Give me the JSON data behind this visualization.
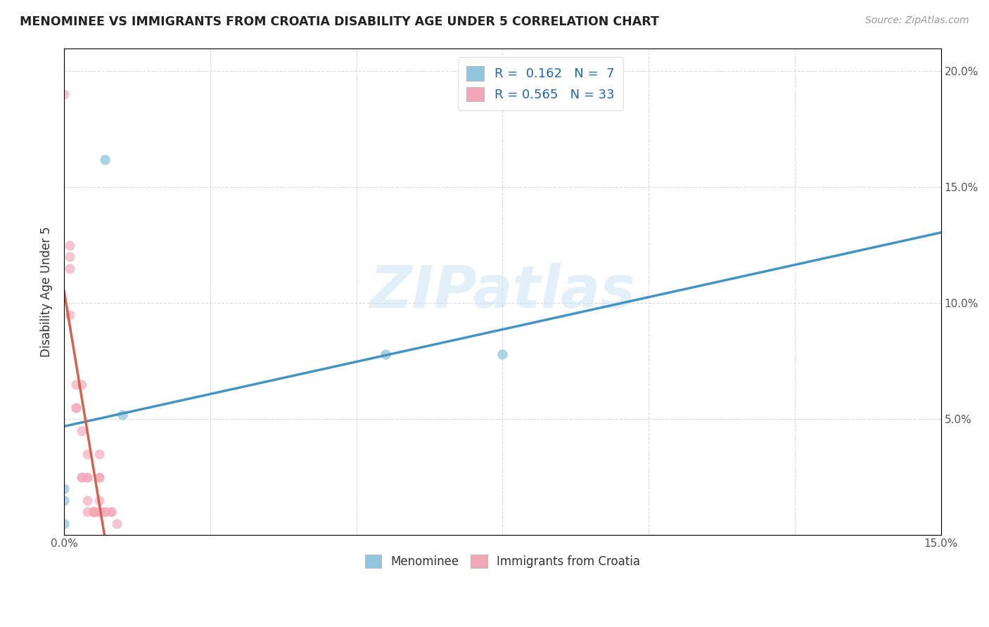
{
  "title": "MENOMINEE VS IMMIGRANTS FROM CROATIA DISABILITY AGE UNDER 5 CORRELATION CHART",
  "source": "Source: ZipAtlas.com",
  "ylabel": "Disability Age Under 5",
  "xlabel": "",
  "xlim": [
    0.0,
    0.15
  ],
  "ylim": [
    0.0,
    0.21
  ],
  "xticks": [
    0.0,
    0.025,
    0.05,
    0.075,
    0.1,
    0.125,
    0.15
  ],
  "yticks": [
    0.0,
    0.05,
    0.1,
    0.15,
    0.2
  ],
  "watermark": "ZIPatlas",
  "legend_r1": "R =  0.162",
  "legend_n1": "N =  7",
  "legend_r2": "R = 0.565",
  "legend_n2": "N = 33",
  "menominee_color": "#92c5de",
  "croatia_color": "#f4a7b9",
  "trendline_menominee_color": "#4393c3",
  "trendline_croatia_color": "#d6604d",
  "menominee_scatter": [
    [
      0.0,
      0.015
    ],
    [
      0.0,
      0.02
    ],
    [
      0.0,
      0.005
    ],
    [
      0.007,
      0.162
    ],
    [
      0.01,
      0.052
    ],
    [
      0.055,
      0.078
    ],
    [
      0.075,
      0.078
    ]
  ],
  "croatia_scatter": [
    [
      0.0,
      0.19
    ],
    [
      0.001,
      0.125
    ],
    [
      0.001,
      0.095
    ],
    [
      0.001,
      0.115
    ],
    [
      0.001,
      0.12
    ],
    [
      0.002,
      0.065
    ],
    [
      0.002,
      0.055
    ],
    [
      0.002,
      0.055
    ],
    [
      0.003,
      0.065
    ],
    [
      0.003,
      0.045
    ],
    [
      0.003,
      0.025
    ],
    [
      0.003,
      0.025
    ],
    [
      0.004,
      0.035
    ],
    [
      0.004,
      0.025
    ],
    [
      0.004,
      0.025
    ],
    [
      0.004,
      0.015
    ],
    [
      0.004,
      0.01
    ],
    [
      0.005,
      0.01
    ],
    [
      0.005,
      0.01
    ],
    [
      0.005,
      0.01
    ],
    [
      0.005,
      0.01
    ],
    [
      0.005,
      0.01
    ],
    [
      0.006,
      0.035
    ],
    [
      0.006,
      0.025
    ],
    [
      0.006,
      0.025
    ],
    [
      0.006,
      0.015
    ],
    [
      0.006,
      0.01
    ],
    [
      0.006,
      0.01
    ],
    [
      0.007,
      0.01
    ],
    [
      0.007,
      0.01
    ],
    [
      0.008,
      0.01
    ],
    [
      0.008,
      0.01
    ],
    [
      0.009,
      0.005
    ]
  ],
  "menominee_size": 90,
  "croatia_size": 90,
  "background_color": "#ffffff",
  "grid_color": "#cccccc",
  "trendline_cro_dashed_color": "#d6604d"
}
